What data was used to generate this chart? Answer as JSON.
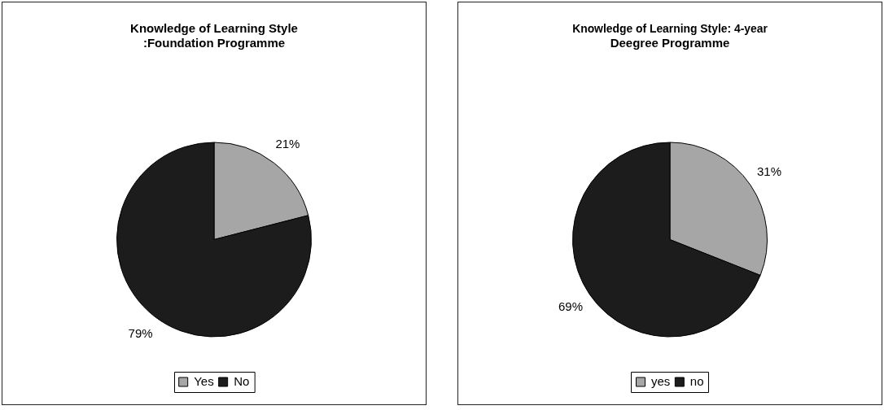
{
  "chart_data": [
    {
      "type": "pie",
      "title": "Knowledge of Learning Style\n:Foundation Programme",
      "categories": [
        "Yes",
        "No"
      ],
      "values": [
        21,
        79
      ],
      "value_labels": [
        "21%",
        "79%"
      ],
      "colors": [
        "#a6a6a6",
        "#1c1c1c"
      ],
      "legend": "bottom"
    },
    {
      "type": "pie",
      "title": "Knowledge of Learning Style: 4-year\nDeegree Programme",
      "categories": [
        "yes",
        "no"
      ],
      "values": [
        31,
        69
      ],
      "value_labels": [
        "31%",
        "69%"
      ],
      "colors": [
        "#a6a6a6",
        "#1c1c1c"
      ],
      "legend": "bottom"
    }
  ]
}
